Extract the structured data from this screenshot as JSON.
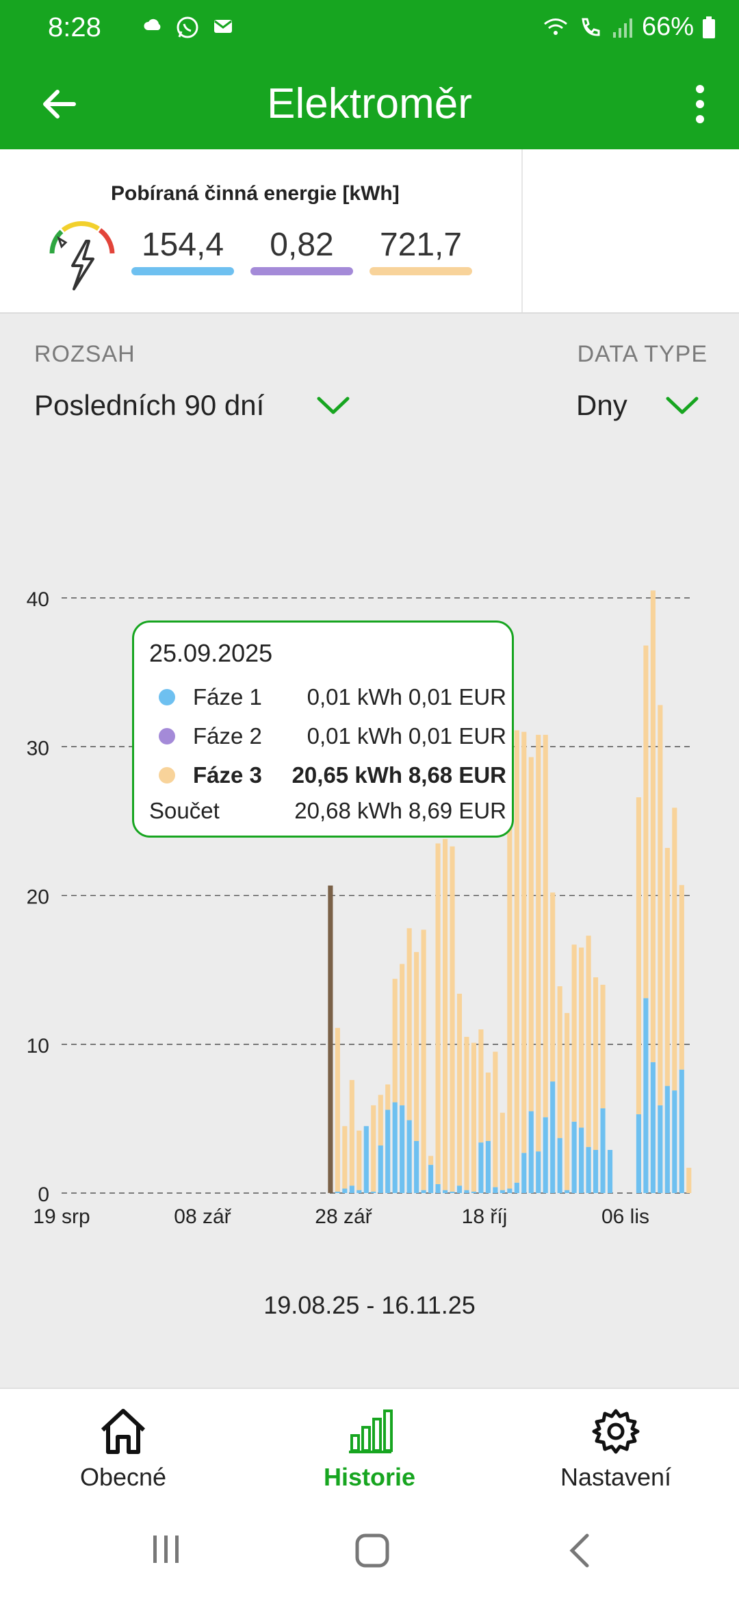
{
  "status_bar": {
    "time": "8:28",
    "battery": "66%"
  },
  "app_bar": {
    "title": "Elektroměr"
  },
  "meter": {
    "title": "Pobíraná činná energie [kWh]",
    "phases": [
      {
        "value": "154,4",
        "color": "#6ec0f0"
      },
      {
        "value": "0,82",
        "color": "#a48ad8"
      },
      {
        "value": "721,7",
        "color": "#f8d39a"
      }
    ]
  },
  "filters": {
    "range_label": "ROZSAH",
    "range_value": "Posledních 90 dní",
    "type_label": "DATA TYPE",
    "type_value": "Dny"
  },
  "chart_data": {
    "type": "bar",
    "stacked": true,
    "ylim": [
      0,
      40
    ],
    "yticks": [
      "0",
      "10",
      "20",
      "30",
      "40"
    ],
    "xticks": [
      "19 srp",
      "08 zář",
      "28 zář",
      "18 říj",
      "06 lis"
    ],
    "grid": "horizontal dashed",
    "selected_day": "25.09.2025",
    "phase1": [
      0,
      0,
      0,
      0,
      0,
      0,
      0,
      0,
      0,
      0,
      0,
      0,
      0,
      0,
      0,
      0,
      0,
      0,
      0,
      0,
      0,
      0,
      0,
      0,
      0,
      0,
      0,
      0,
      0,
      0,
      0,
      0,
      0,
      0,
      0,
      0,
      0,
      0.01,
      0.1,
      0.3,
      0.5,
      0.2,
      4.5,
      0.1,
      3.2,
      5.6,
      6.1,
      5.9,
      4.9,
      3.5,
      0.2,
      1.9,
      0.6,
      0.2,
      0.1,
      0.5,
      0.2,
      0.1,
      3.4,
      3.5,
      0.4,
      0.2,
      0.3,
      0.7,
      2.7,
      5.5,
      2.8,
      5.1,
      7.5,
      3.7,
      0.2,
      4.8,
      4.4,
      3.1,
      2.9,
      5.7,
      2.9,
      0,
      0,
      0,
      5.3,
      13.1,
      8.8,
      5.9,
      7.2,
      6.9,
      8.3,
      0
    ],
    "phase2": [
      0,
      0,
      0,
      0,
      0,
      0,
      0,
      0,
      0,
      0,
      0,
      0,
      0,
      0,
      0,
      0,
      0,
      0,
      0,
      0,
      0,
      0,
      0,
      0,
      0,
      0,
      0,
      0,
      0,
      0,
      0,
      0,
      0,
      0,
      0,
      0,
      0,
      0.01,
      0,
      0,
      0,
      0,
      0,
      0,
      0,
      0,
      0,
      0,
      0,
      0,
      0,
      0,
      0,
      0,
      0,
      0,
      0,
      0,
      0,
      0,
      0,
      0,
      0,
      0,
      0,
      0,
      0,
      0,
      0,
      0,
      0,
      0,
      0,
      0,
      0,
      0,
      0,
      0,
      0,
      0,
      0,
      0,
      0,
      0,
      0,
      0,
      0,
      0
    ],
    "phase3": [
      0,
      0,
      0,
      0,
      0,
      0,
      0,
      0,
      0,
      0,
      0,
      0,
      0,
      0,
      0,
      0,
      0,
      0,
      0,
      0,
      0,
      0,
      0,
      0,
      0,
      0,
      0,
      0,
      0,
      0,
      0,
      0,
      0,
      0,
      0,
      0,
      0,
      20.65,
      11.0,
      4.2,
      7.1,
      4.0,
      0,
      5.8,
      3.4,
      1.7,
      8.3,
      9.5,
      12.9,
      12.7,
      17.5,
      0.6,
      22.9,
      23.6,
      23.2,
      12.9,
      10.3,
      10.0,
      7.6,
      4.6,
      9.1,
      5.2,
      30.7,
      30.4,
      28.3,
      23.8,
      28.0,
      25.7,
      12.7,
      10.2,
      11.9,
      11.9,
      12.1,
      14.2,
      11.6,
      8.3,
      0,
      0,
      0,
      0,
      21.3,
      23.7,
      31.7,
      26.9,
      16.0,
      19.0,
      12.4,
      1.7
    ],
    "series_colors": [
      "#6ec0f0",
      "#a48ad8",
      "#f8d39a"
    ],
    "tooltip": {
      "date": "25.09.2025",
      "rows": [
        {
          "name": "Fáze 1",
          "kwh": "0,01 kWh",
          "eur": "0,01 EUR",
          "color": "#6ec0f0",
          "bold": false
        },
        {
          "name": "Fáze 2",
          "kwh": "0,01 kWh",
          "eur": "0,01 EUR",
          "color": "#a48ad8",
          "bold": false
        },
        {
          "name": "Fáze 3",
          "kwh": "20,65 kWh",
          "eur": "8,68 EUR",
          "color": "#f8d39a",
          "bold": true
        }
      ],
      "total": {
        "name": "Součet",
        "kwh": "20,68 kWh",
        "eur": "8,69 EUR"
      }
    }
  },
  "date_range": "19.08.25 - 16.11.25",
  "bottom_nav": [
    {
      "label": "Obecné",
      "icon": "home-icon",
      "active": false
    },
    {
      "label": "Historie",
      "icon": "bar-chart-icon",
      "active": true
    },
    {
      "label": "Nastavení",
      "icon": "gear-icon",
      "active": false
    }
  ]
}
